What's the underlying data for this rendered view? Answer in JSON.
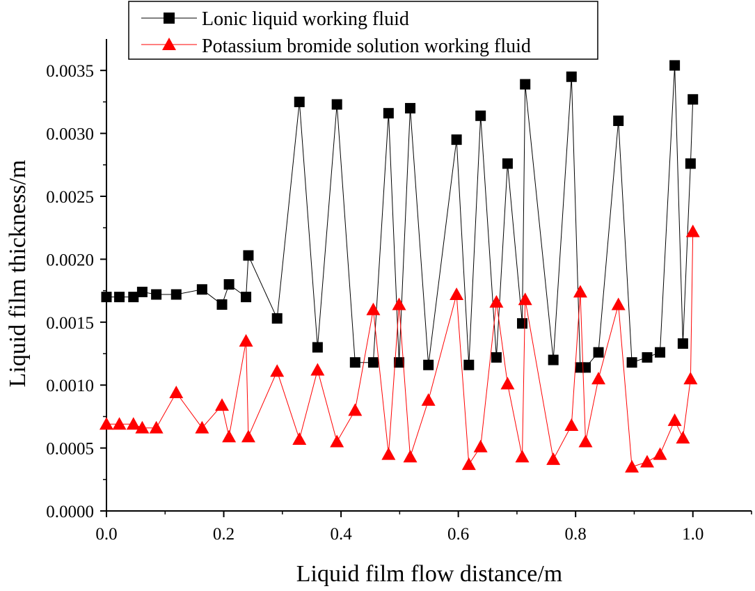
{
  "chart_data": {
    "type": "line",
    "title": "",
    "xlabel": "Liquid film flow distance/m",
    "ylabel": "Liquid film thickness/m",
    "xlim": [
      0.0,
      1.1
    ],
    "ylim": [
      0.0,
      0.00375
    ],
    "xticks": [
      0.0,
      0.2,
      0.4,
      0.6,
      0.8,
      1.0
    ],
    "xtick_labels": [
      "0.0",
      "0.2",
      "0.4",
      "0.6",
      "0.8",
      "1.0"
    ],
    "yticks": [
      0.0,
      0.0005,
      0.001,
      0.0015,
      0.002,
      0.0025,
      0.003,
      0.0035
    ],
    "ytick_labels": [
      "0.0000",
      "0.0005",
      "0.0010",
      "0.0015",
      "0.0020",
      "0.0025",
      "0.0030",
      "0.0035"
    ],
    "grid": false,
    "legend_position": "top-left",
    "series": [
      {
        "name": "Lonic liquid working fluid",
        "color": "#000000",
        "marker": "square",
        "x": [
          0.0,
          0.022,
          0.046,
          0.061,
          0.085,
          0.119,
          0.163,
          0.197,
          0.209,
          0.238,
          0.242,
          0.291,
          0.329,
          0.36,
          0.393,
          0.424,
          0.455,
          0.481,
          0.499,
          0.518,
          0.549,
          0.597,
          0.618,
          0.638,
          0.665,
          0.684,
          0.709,
          0.714,
          0.762,
          0.793,
          0.808,
          0.817,
          0.839,
          0.873,
          0.896,
          0.922,
          0.944,
          0.969,
          0.983,
          0.996,
          1.0
        ],
        "y": [
          0.0017,
          0.0017,
          0.0017,
          0.00174,
          0.00172,
          0.00172,
          0.00176,
          0.00164,
          0.0018,
          0.0017,
          0.00203,
          0.00153,
          0.00325,
          0.0013,
          0.00323,
          0.00118,
          0.00118,
          0.00316,
          0.00118,
          0.0032,
          0.00116,
          0.00295,
          0.00116,
          0.00314,
          0.00122,
          0.00276,
          0.00149,
          0.00339,
          0.0012,
          0.00345,
          0.00114,
          0.00114,
          0.00126,
          0.0031,
          0.00118,
          0.00122,
          0.00126,
          0.00354,
          0.00133,
          0.00276,
          0.00327
        ]
      },
      {
        "name": "Potassium bromide solution working fluid",
        "color": "#ff0000",
        "marker": "triangle",
        "x": [
          0.0,
          0.022,
          0.046,
          0.061,
          0.085,
          0.119,
          0.163,
          0.197,
          0.209,
          0.238,
          0.242,
          0.291,
          0.329,
          0.36,
          0.393,
          0.424,
          0.455,
          0.481,
          0.499,
          0.518,
          0.549,
          0.597,
          0.618,
          0.638,
          0.665,
          0.684,
          0.709,
          0.714,
          0.762,
          0.793,
          0.808,
          0.817,
          0.839,
          0.873,
          0.896,
          0.922,
          0.944,
          0.969,
          0.983,
          0.996,
          1.0
        ],
        "y": [
          0.00069,
          0.00069,
          0.00069,
          0.00066,
          0.00066,
          0.00094,
          0.00066,
          0.00084,
          0.00059,
          0.00135,
          0.00059,
          0.00111,
          0.00057,
          0.00112,
          0.00055,
          0.0008,
          0.0016,
          0.00045,
          0.00164,
          0.00043,
          0.00088,
          0.00172,
          0.00037,
          0.00051,
          0.00166,
          0.00101,
          0.00043,
          0.00168,
          0.00041,
          0.00068,
          0.00174,
          0.00055,
          0.00105,
          0.00164,
          0.00035,
          0.00039,
          0.00045,
          0.00072,
          0.00058,
          0.00105,
          0.00222
        ]
      }
    ]
  }
}
